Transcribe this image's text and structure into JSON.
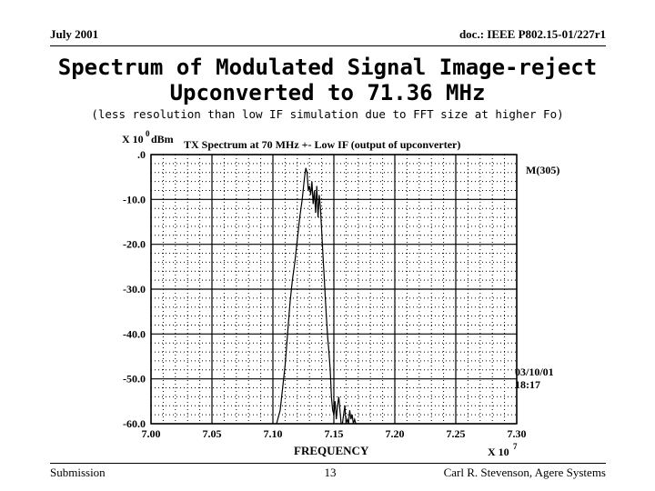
{
  "header": {
    "date": "July 2001",
    "doc": "doc.: IEEE P802.15-01/227r1"
  },
  "slide": {
    "title_line1": "Spectrum of Modulated Signal Image-reject",
    "title_line2": "Upconverted to 71.36 MHz",
    "subtitle": "(less resolution than low IF simulation due to FFT size at higher Fo)"
  },
  "footer": {
    "left": "Submission",
    "page": "13",
    "right": "Carl R. Stevenson, Agere Systems"
  },
  "chart_data": {
    "type": "line",
    "title": "TX Spectrum at 70 MHz +- Low IF (output of upconverter)",
    "xlabel": "FREQUENCY",
    "x_multiplier": "X 10",
    "x_exponent": "7",
    "y_multiplier": "X 10",
    "y_exponent": "0",
    "yunit": "dBm",
    "xlim": [
      7.0,
      7.3
    ],
    "ylim": [
      -60,
      0
    ],
    "x_ticks": [
      7.0,
      7.05,
      7.1,
      7.15,
      7.2,
      7.25,
      7.3
    ],
    "x_tick_labels": [
      "7.00",
      "7.05",
      "7.10",
      "7.15",
      "7.20",
      "7.25",
      "7.30"
    ],
    "y_ticks": [
      0,
      -10,
      -20,
      -30,
      -40,
      -50,
      -60
    ],
    "y_tick_labels": [
      ".0",
      "-10.0",
      "-20.0",
      "-30.0",
      "-40.0",
      "-50.0",
      "-60.0"
    ],
    "grid": true,
    "annotations": {
      "marker": "M(305)",
      "date": "03/10/01",
      "time": "18:17"
    },
    "series": [
      {
        "x": [
          7.103,
          7.106,
          7.108,
          7.11,
          7.112,
          7.114,
          7.116,
          7.118,
          7.12,
          7.122,
          7.124,
          7.126,
          7.127,
          7.128,
          7.129,
          7.13,
          7.131,
          7.132,
          7.133,
          7.134,
          7.135,
          7.136,
          7.137,
          7.138,
          7.139,
          7.14,
          7.141,
          7.142,
          7.143,
          7.144,
          7.145,
          7.146,
          7.147,
          7.148,
          7.149,
          7.15,
          7.151,
          7.152,
          7.153,
          7.154,
          7.155,
          7.156,
          7.157,
          7.158,
          7.159,
          7.16,
          7.161,
          7.162,
          7.163,
          7.164,
          7.165,
          7.166,
          7.167,
          7.168,
          7.169
        ],
        "y": [
          -60,
          -57,
          -52,
          -47,
          -40,
          -33,
          -28,
          -24,
          -19,
          -14,
          -10,
          -5,
          -3,
          -4,
          -8,
          -7,
          -9,
          -6,
          -11,
          -8,
          -13,
          -7,
          -14,
          -9,
          -12,
          -17,
          -22,
          -27,
          -32,
          -37,
          -41,
          -44,
          -48,
          -54,
          -57,
          -58,
          -55,
          -59,
          -56,
          -54,
          -57,
          -60,
          -60,
          -58,
          -56,
          -60,
          -59,
          -60,
          -57,
          -59,
          -58,
          -60,
          -59,
          -60,
          -60
        ]
      }
    ]
  }
}
